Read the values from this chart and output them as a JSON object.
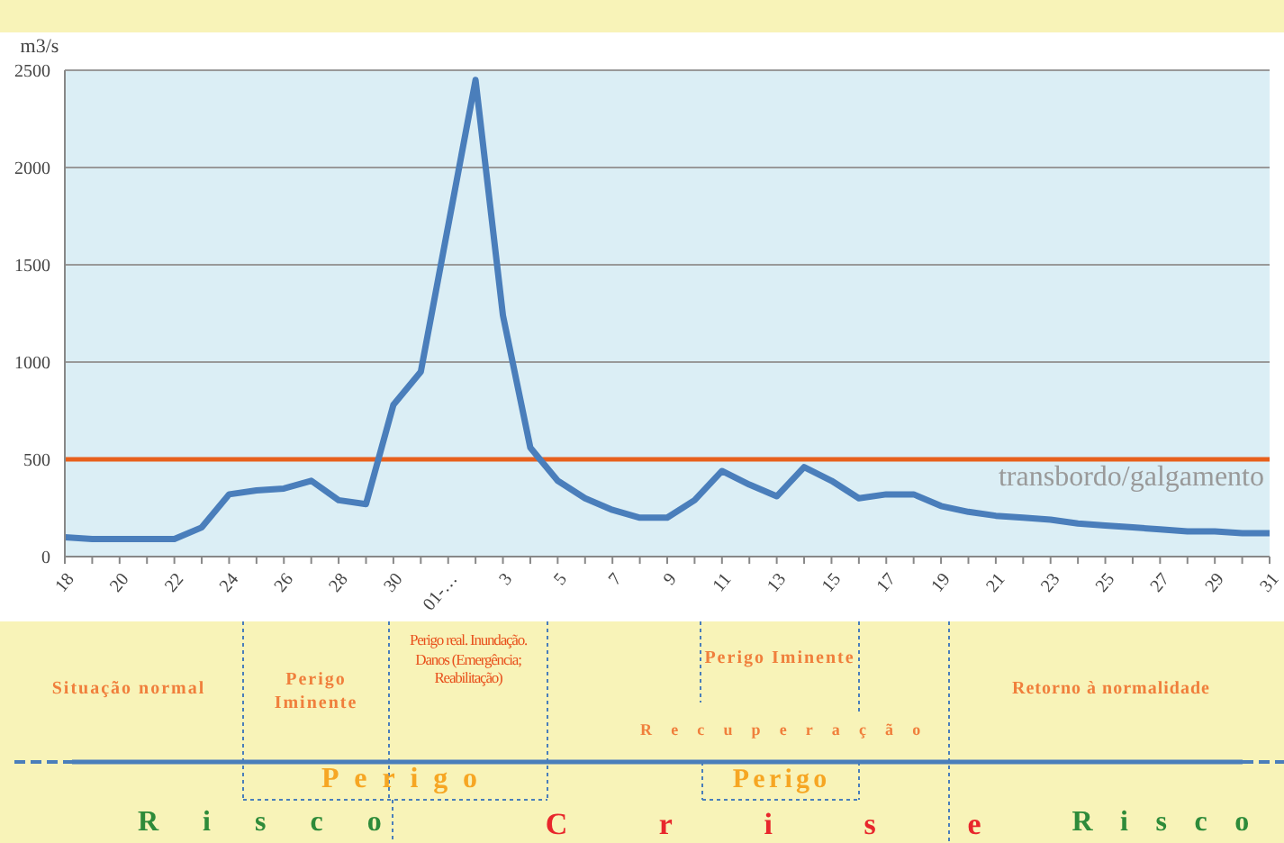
{
  "chart_data": {
    "type": "line",
    "ylabel": "m3/s",
    "categories": [
      "18",
      null,
      "20",
      null,
      "22",
      null,
      "24",
      null,
      "26",
      null,
      "28",
      null,
      "30",
      null,
      "01-…",
      null,
      "3",
      null,
      "5",
      null,
      "7",
      null,
      "9",
      null,
      "11",
      null,
      "13",
      null,
      "15",
      null,
      "17",
      null,
      "19",
      null,
      "21",
      null,
      "23",
      null,
      "25",
      null,
      "27",
      null,
      "29",
      null,
      "31"
    ],
    "series": [
      {
        "color": "#4a7ebb",
        "values": [
          100,
          90,
          90,
          90,
          90,
          150,
          320,
          340,
          350,
          390,
          290,
          270,
          780,
          950,
          1700,
          2450,
          1240,
          560,
          390,
          300,
          240,
          200,
          200,
          290,
          440,
          370,
          310,
          460,
          390,
          300,
          320,
          320,
          260,
          230,
          210,
          200,
          190,
          170,
          160,
          150,
          140,
          130,
          130,
          120,
          120
        ]
      }
    ],
    "ylim": [
      0,
      2500
    ],
    "yticks": [
      0,
      500,
      1000,
      1500,
      2000,
      2500
    ],
    "grid": "y",
    "marker": "none",
    "line_style": "solid",
    "ref_lines": [
      {
        "axis": "y",
        "value": 500,
        "label": "transbordo/galgamento",
        "color": "#e8601c"
      }
    ],
    "annotations": [
      "Situação normal",
      "Perigo Iminente",
      "Perigo real. Inundação. Danos (Emergência; Reabilitação)",
      "Perigo Iminente",
      "Recuperação",
      "Retorno à normalidade",
      "Perigo",
      "Perigo",
      "Risco",
      "Crise",
      "Risco"
    ]
  }
}
